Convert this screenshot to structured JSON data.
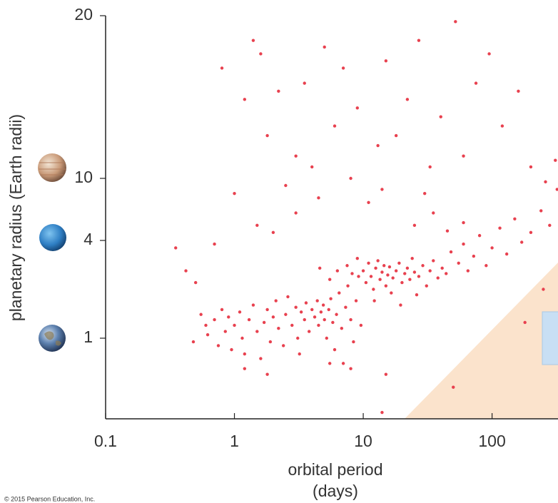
{
  "chart_data": {
    "type": "scatter",
    "y_label": "planetary radius (Earth radii)",
    "x_label": [
      "orbital period",
      "(days)"
    ],
    "credit": "© 2015 Pearson Education, Inc.",
    "log_x": true,
    "log_y": true,
    "color": "#e8414f",
    "xlim": [
      0.1,
      325
    ],
    "xticks": [
      0.1,
      1,
      10,
      100
    ],
    "ylim": [
      0.32,
      20
    ],
    "yticks": [
      1,
      4,
      10,
      20
    ],
    "x": [
      0.35,
      0.42,
      0.5,
      0.48,
      0.55,
      0.6,
      0.62,
      0.7,
      0.75,
      0.8,
      0.85,
      0.9,
      0.95,
      1.0,
      1.1,
      1.15,
      1.2,
      1.3,
      1.4,
      1.5,
      1.6,
      1.7,
      1.8,
      1.9,
      2.0,
      2.1,
      2.2,
      2.4,
      2.5,
      2.6,
      2.8,
      3.0,
      3.1,
      3.3,
      3.5,
      3.6,
      3.8,
      4.0,
      4.2,
      4.4,
      4.5,
      4.7,
      4.9,
      5.0,
      5.2,
      5.4,
      5.6,
      5.8,
      6.0,
      6.2,
      6.5,
      6.8,
      7.0,
      7.3,
      7.6,
      8.0,
      8.4,
      8.8,
      9.2,
      9.6,
      10,
      10.5,
      11,
      11.5,
      12,
      12.5,
      13,
      13.5,
      14,
      14.5,
      15,
      15.5,
      16,
      17,
      18,
      19,
      20,
      21,
      22,
      23,
      24,
      25,
      27,
      29,
      31,
      33,
      35,
      38,
      41,
      44,
      7.5,
      8.2,
      6.3,
      9.0,
      12.2,
      16.5,
      19.5,
      26,
      5.5,
      4.6,
      48,
      55,
      60,
      65,
      72,
      80,
      90,
      100,
      115,
      130,
      150,
      170,
      200,
      240,
      280,
      320,
      60,
      45,
      35,
      25,
      0.8,
      1.0,
      1.2,
      1.4,
      1.6,
      1.8,
      2.2,
      2.5,
      3.0,
      3.5,
      4.0,
      5.0,
      6.0,
      7.0,
      8.0,
      9.0,
      11,
      13,
      15,
      18,
      22,
      27,
      33,
      40,
      52,
      60,
      75,
      95,
      120,
      160,
      200,
      260,
      310,
      3.0,
      1.5,
      2.0,
      0.7,
      4.5,
      14,
      30,
      1.2,
      1.8,
      3.2,
      5.5,
      8,
      15,
      14,
      50,
      180,
      250
    ],
    "values": [
      3.6,
      2.6,
      2.2,
      0.95,
      1.4,
      1.2,
      1.05,
      1.3,
      0.9,
      1.5,
      1.1,
      1.35,
      0.85,
      1.2,
      1.45,
      1.0,
      0.8,
      1.3,
      1.6,
      1.1,
      0.75,
      1.25,
      1.5,
      0.95,
      1.35,
      1.7,
      1.15,
      0.9,
      1.4,
      1.8,
      1.2,
      1.55,
      1.0,
      1.45,
      1.3,
      1.65,
      1.1,
      1.5,
      1.35,
      1.7,
      1.2,
      1.45,
      1.6,
      1.3,
      1.0,
      1.5,
      1.75,
      1.25,
      0.85,
      1.4,
      1.9,
      1.15,
      0.7,
      1.55,
      2.1,
      1.3,
      0.95,
      1.7,
      2.4,
      1.2,
      2.6,
      2.2,
      2.9,
      2.4,
      2.0,
      2.7,
      3.0,
      2.3,
      2.55,
      2.8,
      2.1,
      2.45,
      2.75,
      2.35,
      2.6,
      2.9,
      2.2,
      2.5,
      2.7,
      2.3,
      3.1,
      2.55,
      2.4,
      2.8,
      2.1,
      2.6,
      3.0,
      2.35,
      2.7,
      2.5,
      2.8,
      2.5,
      2.6,
      3.1,
      1.7,
      1.9,
      1.6,
      1.85,
      2.3,
      2.7,
      3.4,
      2.9,
      3.8,
      2.6,
      3.2,
      4.3,
      2.8,
      3.6,
      4.8,
      3.3,
      5.5,
      3.9,
      4.5,
      6.2,
      5.0,
      8.5,
      5.2,
      4.6,
      6.0,
      5.0,
      16,
      8,
      14,
      18,
      17,
      12,
      14.5,
      9,
      11,
      15,
      10.5,
      17.5,
      12.5,
      16,
      10,
      13.5,
      7,
      11.5,
      16.5,
      12,
      14,
      18,
      10.5,
      13,
      19.5,
      11,
      15,
      17,
      12.5,
      14.5,
      10.5,
      9.5,
      10.8,
      6,
      5,
      4.5,
      3.8,
      7.5,
      8.5,
      8.0,
      0.65,
      0.6,
      0.8,
      0.7,
      0.65,
      0.6,
      0.35,
      0.5,
      1.25,
      2.0
    ]
  }
}
